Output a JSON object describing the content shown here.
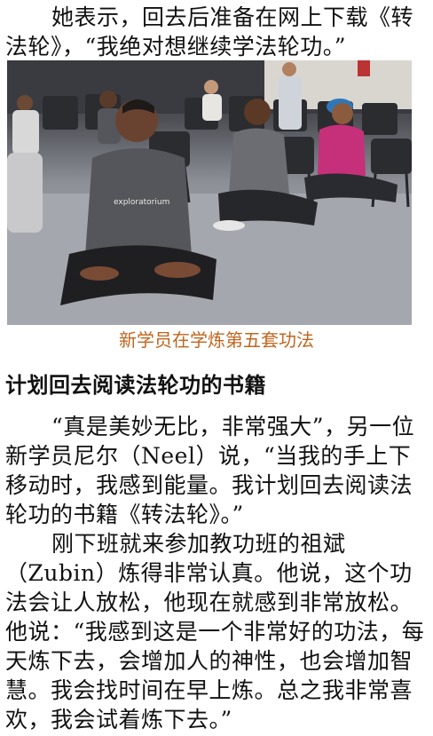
{
  "intro_paragraph": "她表示，回去后准备在网上下载《转法轮》，“我绝对想继续学法轮功。”",
  "photo": {
    "alt": "New students practicing the fifth Falun Gong exercise, sitting cross-legged in meditation in a room with chairs",
    "shirt_text": "exploratorium"
  },
  "caption": "新学员在学炼第五套功法",
  "section_heading": "计划回去阅读法轮功的书籍",
  "paragraph_neel": "“真是美妙无比，非常强大”，另一位新学员尼尔（Neel）说，“当我的手上下移动时，我感到能量。我计划回去阅读法轮功的书籍《转法轮》。”",
  "paragraph_zubin": "刚下班就来参加教功班的祖斌（Zubin）炼得非常认真。他说，这个功法会让人放松，他现在就感到非常放松。他说：“我感到这是一个非常好的功法，每天炼下去，会增加人的神性，也会增加智慧。我会找时间在早上炼。总之我非常喜欢，我会试着炼下去。”"
}
